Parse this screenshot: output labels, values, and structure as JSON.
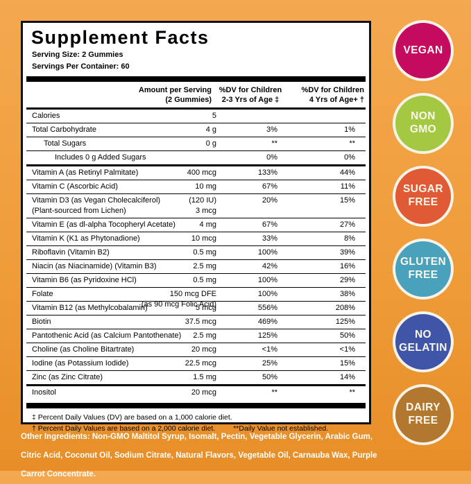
{
  "panel": {
    "title": "Supplement Facts",
    "serving_size": "Serving Size: 2 Gummies",
    "servings_per_container": "Servings Per Container: 60",
    "columns": {
      "amount": "Amount per Serving\n(2 Gummies)",
      "dv1": "%DV for Children\n2-3 Yrs of Age ‡",
      "dv2": "%DV for Children\n4 Yrs of Age+ †"
    },
    "rows": [
      {
        "name": "Calories",
        "amount": "5",
        "dv1": "",
        "dv2": ""
      },
      {
        "name": "Total Carbohydrate",
        "amount": "4 g",
        "dv1": "3%",
        "dv2": "1%"
      },
      {
        "name": "Total Sugars",
        "indent": 1,
        "amount": "0 g",
        "dv1": "**",
        "dv2": "**"
      },
      {
        "name": "Includes 0 g Added Sugars",
        "indent": 2,
        "amount": "",
        "dv1": "0%",
        "dv2": "0%",
        "sep": "medium"
      },
      {
        "name": "Vitamin A (as Retinyl Palmitate)",
        "amount": "400 mcg",
        "dv1": "133%",
        "dv2": "44%"
      },
      {
        "name": "Vitamin C (Ascorbic Acid)",
        "amount": "10 mg",
        "dv1": "67%",
        "dv2": "11%"
      },
      {
        "name": "Vitamin D3 (as Vegan Cholecalciferol)\n(Plant-sourced from Lichen)",
        "amount": "(120 IU)\n3 mcg",
        "dv1": "20%",
        "dv2": "15%"
      },
      {
        "name": "Vitamin E (as dl-alpha Tocopheryl Acetate)",
        "amount": "4 mg",
        "dv1": "67%",
        "dv2": "27%"
      },
      {
        "name": "Vitamin K (K1 as Phytonadione)",
        "amount": "10 mcg",
        "dv1": "33%",
        "dv2": "8%"
      },
      {
        "name": "Riboflavin (Vitamin B2)",
        "amount": "0.5 mg",
        "dv1": "100%",
        "dv2": "39%"
      },
      {
        "name": "Niacin (as Niacinamide) (Vitamin B3)",
        "amount": "2.5 mg",
        "dv1": "42%",
        "dv2": "16%"
      },
      {
        "name": "Vitamin B6 (as Pyridoxine HCl)",
        "amount": "0.5 mg",
        "dv1": "100%",
        "dv2": "29%"
      },
      {
        "name": "Folate",
        "amount": "150 mcg DFE\n(as 90 mcg Folic Acid)",
        "dv1": "100%",
        "dv2": "38%"
      },
      {
        "name": "Vitamin B12 (as Methylcobalamin)",
        "amount": "5 mcg",
        "dv1": "556%",
        "dv2": "208%"
      },
      {
        "name": "Biotin",
        "amount": "37.5 mcg",
        "dv1": "469%",
        "dv2": "125%"
      },
      {
        "name": "Pantothenic Acid (as Calcium Pantothenate)",
        "amount": "2.5 mg",
        "dv1": "125%",
        "dv2": "50%"
      },
      {
        "name": "Choline (as Choline Bitartrate)",
        "amount": "20 mcg",
        "dv1": "<1%",
        "dv2": "<1%"
      },
      {
        "name": "Iodine (as Potassium Iodide)",
        "amount": "22.5 mcg",
        "dv1": "25%",
        "dv2": "15%"
      },
      {
        "name": "Zinc (as Zinc Citrate)",
        "amount": "1.5 mg",
        "dv1": "50%",
        "dv2": "14%",
        "sep": "medium"
      },
      {
        "name": "Inositol",
        "amount": "20 mcg",
        "dv1": "**",
        "dv2": "**"
      }
    ],
    "footnotes": {
      "line1": "‡ Percent Daily Values (DV) are based on a 1,000 calorie diet.",
      "line2a": "† Percent Daily Values are based on a 2,000 calorie diet.",
      "line2b": "**Daily Value not established."
    }
  },
  "badges": [
    {
      "name": "vegan",
      "label": "VEGAN",
      "color": "#C40B60"
    },
    {
      "name": "non-gmo",
      "label": "NON\nGMO",
      "color": "#A5C843"
    },
    {
      "name": "sugar-free",
      "label": "SUGAR\nFREE",
      "color": "#E05A36"
    },
    {
      "name": "gluten-free",
      "label": "GLUTEN\nFREE",
      "color": "#49A1BC"
    },
    {
      "name": "no-gelatin",
      "label": "NO\nGELATIN",
      "color": "#3E55A8"
    },
    {
      "name": "dairy-free",
      "label": "DAIRY\nFREE",
      "color": "#B3782F"
    }
  ],
  "other_ingredients": "Other Ingredients: Non-GMO Maltitol Syrup, Isomalt, Pectin, Vegetable Glycerin, Arabic Gum, Citric Acid, Coconut Oil, Sodium Citrate, Natural Flavors, Vegetable Oil, Carnauba Wax, Purple Carrot Concentrate.",
  "colors": {
    "background_top": "#F4A84F",
    "background_bottom": "#E78E28",
    "badge_ring": "#F7F3E8",
    "panel_border": "#111111"
  }
}
